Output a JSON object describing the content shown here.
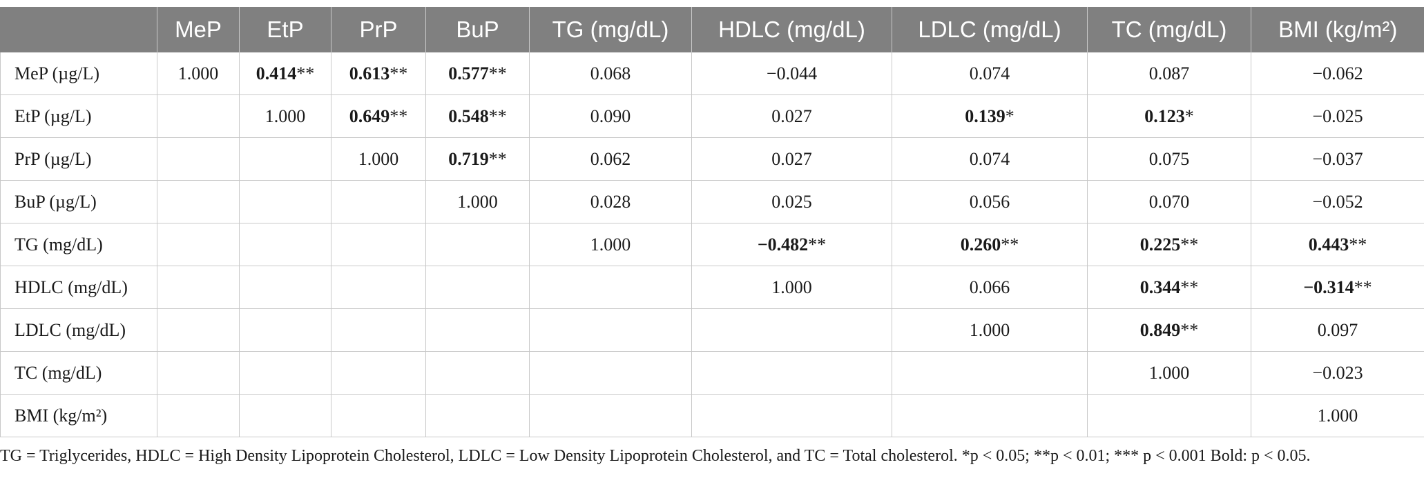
{
  "table": {
    "headers": [
      "",
      "MeP",
      "EtP",
      "PrP",
      "BuP",
      "TG (mg/dL)",
      "HDLC (mg/dL)",
      "LDLC (mg/dL)",
      "TC (mg/dL)",
      "BMI (kg/m²)"
    ],
    "rows": [
      {
        "label": "MeP (µg/L)",
        "cells": [
          {
            "v": "1.000",
            "s": "",
            "b": false
          },
          {
            "v": "0.414",
            "s": "**",
            "b": true
          },
          {
            "v": "0.613",
            "s": "**",
            "b": true
          },
          {
            "v": "0.577",
            "s": "**",
            "b": true
          },
          {
            "v": "0.068",
            "s": "",
            "b": false
          },
          {
            "v": "−0.044",
            "s": "",
            "b": false
          },
          {
            "v": "0.074",
            "s": "",
            "b": false
          },
          {
            "v": "0.087",
            "s": "",
            "b": false
          },
          {
            "v": "−0.062",
            "s": "",
            "b": false
          }
        ]
      },
      {
        "label": "EtP (µg/L)",
        "cells": [
          {
            "v": "",
            "s": "",
            "b": false
          },
          {
            "v": "1.000",
            "s": "",
            "b": false
          },
          {
            "v": "0.649",
            "s": "**",
            "b": true
          },
          {
            "v": "0.548",
            "s": "**",
            "b": true
          },
          {
            "v": "0.090",
            "s": "",
            "b": false
          },
          {
            "v": "0.027",
            "s": "",
            "b": false
          },
          {
            "v": "0.139",
            "s": "*",
            "b": true
          },
          {
            "v": "0.123",
            "s": "*",
            "b": true
          },
          {
            "v": "−0.025",
            "s": "",
            "b": false
          }
        ]
      },
      {
        "label": "PrP (µg/L)",
        "cells": [
          {
            "v": "",
            "s": "",
            "b": false
          },
          {
            "v": "",
            "s": "",
            "b": false
          },
          {
            "v": "1.000",
            "s": "",
            "b": false
          },
          {
            "v": "0.719",
            "s": "**",
            "b": true
          },
          {
            "v": "0.062",
            "s": "",
            "b": false
          },
          {
            "v": "0.027",
            "s": "",
            "b": false
          },
          {
            "v": "0.074",
            "s": "",
            "b": false
          },
          {
            "v": "0.075",
            "s": "",
            "b": false
          },
          {
            "v": "−0.037",
            "s": "",
            "b": false
          }
        ]
      },
      {
        "label": "BuP (µg/L)",
        "cells": [
          {
            "v": "",
            "s": "",
            "b": false
          },
          {
            "v": "",
            "s": "",
            "b": false
          },
          {
            "v": "",
            "s": "",
            "b": false
          },
          {
            "v": "1.000",
            "s": "",
            "b": false
          },
          {
            "v": "0.028",
            "s": "",
            "b": false
          },
          {
            "v": "0.025",
            "s": "",
            "b": false
          },
          {
            "v": "0.056",
            "s": "",
            "b": false
          },
          {
            "v": "0.070",
            "s": "",
            "b": false
          },
          {
            "v": "−0.052",
            "s": "",
            "b": false
          }
        ]
      },
      {
        "label": "TG (mg/dL)",
        "cells": [
          {
            "v": "",
            "s": "",
            "b": false
          },
          {
            "v": "",
            "s": "",
            "b": false
          },
          {
            "v": "",
            "s": "",
            "b": false
          },
          {
            "v": "",
            "s": "",
            "b": false
          },
          {
            "v": "1.000",
            "s": "",
            "b": false
          },
          {
            "v": "−0.482",
            "s": "**",
            "b": true
          },
          {
            "v": "0.260",
            "s": "**",
            "b": true
          },
          {
            "v": "0.225",
            "s": "**",
            "b": true
          },
          {
            "v": "0.443",
            "s": "**",
            "b": true
          }
        ]
      },
      {
        "label": "HDLC (mg/dL)",
        "cells": [
          {
            "v": "",
            "s": "",
            "b": false
          },
          {
            "v": "",
            "s": "",
            "b": false
          },
          {
            "v": "",
            "s": "",
            "b": false
          },
          {
            "v": "",
            "s": "",
            "b": false
          },
          {
            "v": "",
            "s": "",
            "b": false
          },
          {
            "v": "1.000",
            "s": "",
            "b": false
          },
          {
            "v": "0.066",
            "s": "",
            "b": false
          },
          {
            "v": "0.344",
            "s": "**",
            "b": true
          },
          {
            "v": "−0.314",
            "s": "**",
            "b": true
          }
        ]
      },
      {
        "label": "LDLC (mg/dL)",
        "cells": [
          {
            "v": "",
            "s": "",
            "b": false
          },
          {
            "v": "",
            "s": "",
            "b": false
          },
          {
            "v": "",
            "s": "",
            "b": false
          },
          {
            "v": "",
            "s": "",
            "b": false
          },
          {
            "v": "",
            "s": "",
            "b": false
          },
          {
            "v": "",
            "s": "",
            "b": false
          },
          {
            "v": "1.000",
            "s": "",
            "b": false
          },
          {
            "v": "0.849",
            "s": "**",
            "b": true
          },
          {
            "v": "0.097",
            "s": "",
            "b": false
          }
        ]
      },
      {
        "label": "TC (mg/dL)",
        "cells": [
          {
            "v": "",
            "s": "",
            "b": false
          },
          {
            "v": "",
            "s": "",
            "b": false
          },
          {
            "v": "",
            "s": "",
            "b": false
          },
          {
            "v": "",
            "s": "",
            "b": false
          },
          {
            "v": "",
            "s": "",
            "b": false
          },
          {
            "v": "",
            "s": "",
            "b": false
          },
          {
            "v": "",
            "s": "",
            "b": false
          },
          {
            "v": "1.000",
            "s": "",
            "b": false
          },
          {
            "v": "−0.023",
            "s": "",
            "b": false
          }
        ]
      },
      {
        "label": "BMI (kg/m²)",
        "cells": [
          {
            "v": "",
            "s": "",
            "b": false
          },
          {
            "v": "",
            "s": "",
            "b": false
          },
          {
            "v": "",
            "s": "",
            "b": false
          },
          {
            "v": "",
            "s": "",
            "b": false
          },
          {
            "v": "",
            "s": "",
            "b": false
          },
          {
            "v": "",
            "s": "",
            "b": false
          },
          {
            "v": "",
            "s": "",
            "b": false
          },
          {
            "v": "",
            "s": "",
            "b": false
          },
          {
            "v": "1.000",
            "s": "",
            "b": false
          }
        ]
      }
    ]
  },
  "footnote": "TG = Triglycerides, HDLC = High Density Lipoprotein Cholesterol, LDLC = Low Density Lipoprotein Cholesterol, and TC = Total cholesterol. *p < 0.05; **p < 0.01; *** p < 0.001 Bold: p < 0.05.",
  "colors": {
    "header_bg": "#808080",
    "header_text": "#ffffff",
    "grid": "#c8c8c8"
  }
}
